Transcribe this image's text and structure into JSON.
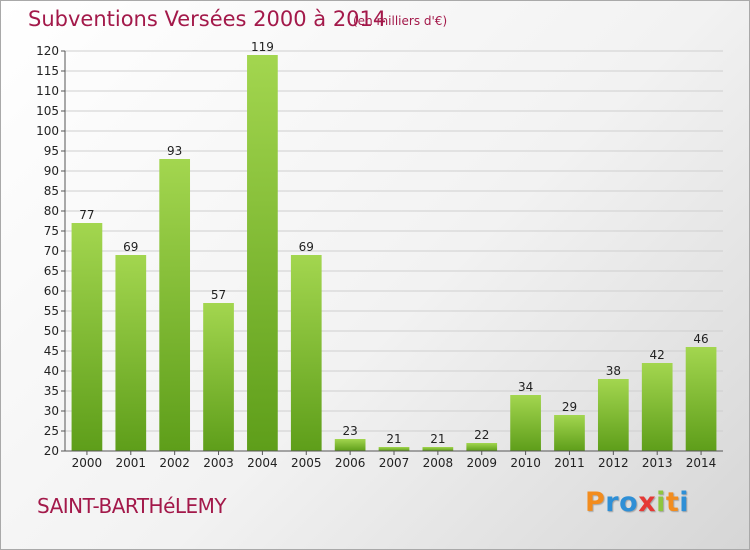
{
  "header": {
    "title": "Subventions Versées 2000 à 2014",
    "unit_note": "(en milliers d'€)"
  },
  "footer": {
    "place": "SAINT-BARTHéLEMY",
    "logo_letters": [
      "P",
      "r",
      "o",
      "x",
      "i",
      "t",
      "i"
    ],
    "logo_colors": [
      "#f28c1e",
      "#2e8fd6",
      "#2e8fd6",
      "#e53935",
      "#8dc63f",
      "#f28c1e",
      "#2e8fd6"
    ]
  },
  "colors": {
    "title": "#a3194a",
    "bar_light": "#a3d64f",
    "bar_dark": "#5e9e1a",
    "grid": "#cfcfcf"
  },
  "chart_data": {
    "type": "bar",
    "categories": [
      "2000",
      "2001",
      "2002",
      "2003",
      "2004",
      "2005",
      "2006",
      "2007",
      "2008",
      "2009",
      "2010",
      "2011",
      "2012",
      "2013",
      "2014"
    ],
    "values": [
      77,
      69,
      93,
      57,
      119,
      69,
      23,
      21,
      21,
      22,
      34,
      29,
      38,
      42,
      46
    ],
    "ylim": [
      20,
      120
    ],
    "ytick_step": 5,
    "grid": "horizontal",
    "data_labels": true
  }
}
